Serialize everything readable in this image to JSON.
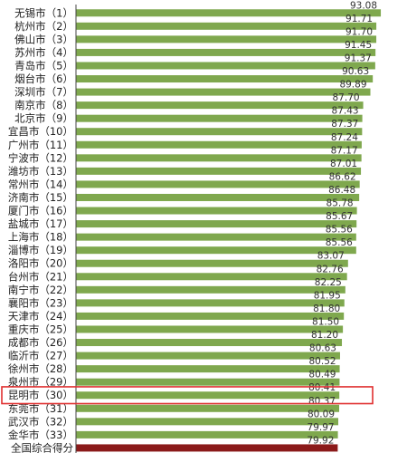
{
  "colors": {
    "bar": "#7fa84e",
    "bar_total": "#8b1a1a",
    "highlight_box": "#e03030",
    "axis": "#444444",
    "value_text": "#333333",
    "value_text_total": "#c0392b"
  },
  "chart_data": {
    "type": "bar",
    "orientation": "horizontal",
    "title": "",
    "xlabel": "",
    "ylabel": "",
    "xlim": [
      0,
      95
    ],
    "grid": false,
    "legend": "none",
    "highlighted_category": "昆明市（30）",
    "categories": [
      "无锡市（1）",
      "杭州市（2）",
      "佛山市（3）",
      "苏州市（4）",
      "青岛市（5）",
      "烟台市（6）",
      "深圳市（7）",
      "南京市（8）",
      "北京市（9）",
      "宜昌市（10）",
      "广州市（11）",
      "宁波市（12）",
      "潍坊市（13）",
      "常州市（14）",
      "济南市（15）",
      "厦门市（16）",
      "盐城市（17）",
      "上海市（18）",
      "淄博市（19）",
      "洛阳市（20）",
      "台州市（21）",
      "南宁市（22）",
      "襄阳市（23）",
      "天津市（24）",
      "重庆市（25）",
      "成都市（26）",
      "临沂市（27）",
      "徐州市（28）",
      "泉州市（29）",
      "昆明市（30）",
      "东莞市（31）",
      "武汉市（32）",
      "金华市（33）",
      "全国综合得分"
    ],
    "value_labels": [
      "93.08",
      "91.71",
      "91.70",
      "91.45",
      "91.37",
      "90.63",
      "89.89",
      "87.70",
      "87.43",
      "87.37",
      "87.24",
      "87.17",
      "87.01",
      "86.62",
      "86.48",
      "85.78",
      "85.67",
      "85.56",
      "85.56",
      "83.07",
      "82.76",
      "82.25",
      "81.95",
      "81.80",
      "81.50",
      "81.20",
      "80.63",
      "80.52",
      "80.49",
      "80.41",
      "80.37",
      "80.09",
      "79.97",
      "79.92"
    ],
    "values": [
      93.08,
      91.71,
      91.7,
      91.45,
      91.37,
      90.63,
      89.89,
      87.7,
      87.43,
      87.37,
      87.24,
      87.17,
      87.01,
      86.62,
      86.48,
      85.78,
      85.67,
      85.56,
      85.56,
      83.07,
      82.76,
      82.25,
      81.95,
      81.8,
      81.5,
      81.2,
      80.63,
      80.52,
      80.49,
      80.41,
      80.37,
      80.09,
      79.97,
      79.92
    ]
  }
}
